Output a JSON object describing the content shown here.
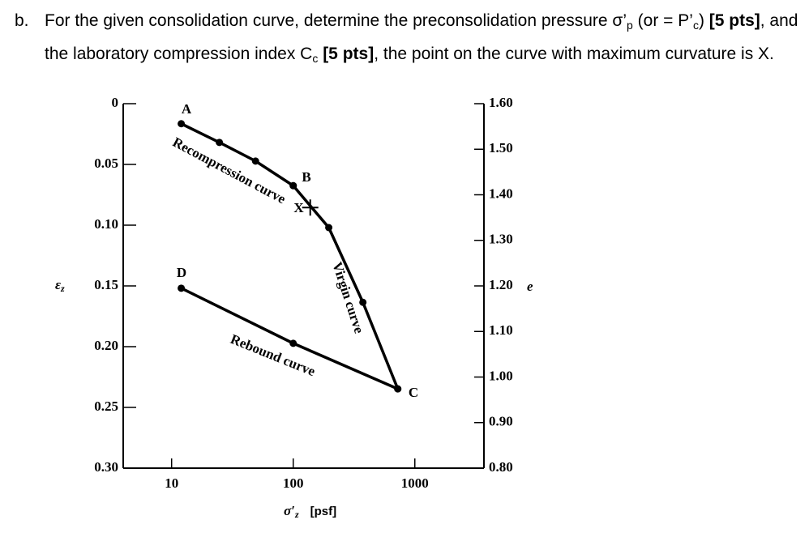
{
  "question": {
    "label": "b.",
    "segments": [
      {
        "text": "For the given consolidation curve, determine the preconsolidation pressure σ’",
        "style": "plain"
      },
      {
        "text": "p",
        "style": "sub"
      },
      {
        "text": " (or = P’",
        "style": "plain"
      },
      {
        "text": "c",
        "style": "sub"
      },
      {
        "text": ") ",
        "style": "plain"
      },
      {
        "text": "[5 pts]",
        "style": "bold"
      },
      {
        "text": ", and the laboratory compression index C",
        "style": "plain"
      },
      {
        "text": "c",
        "style": "sub"
      },
      {
        "text": " ",
        "style": "plain"
      },
      {
        "text": "[5 pts]",
        "style": "bold"
      },
      {
        "text": ", the point on the curve with maximum curvature is X.",
        "style": "plain"
      }
    ]
  },
  "chart_data": {
    "type": "line",
    "xlog": true,
    "xlabel": {
      "symbol": "σ′",
      "sub": "z",
      "unit": "[psf]"
    },
    "ylabel": {
      "symbol": "ε",
      "sub": "z"
    },
    "y2label": "e",
    "xlim": [
      4,
      3700
    ],
    "xticks": [
      10,
      100,
      1000
    ],
    "ylim": [
      0.3,
      0
    ],
    "yticks": [
      0,
      0.05,
      {
        "value": 0.1,
        "label": "0.10"
      },
      0.15,
      {
        "value": 0.2,
        "label": "0.20"
      },
      0.25,
      {
        "value": 0.3,
        "label": "0.30"
      }
    ],
    "y2lim": [
      0.8,
      1.6
    ],
    "y2ticks": [
      {
        "value": 1.6,
        "label": "1.60"
      },
      {
        "value": 1.5,
        "label": "1.50"
      },
      {
        "value": 1.4,
        "label": "1.40"
      },
      {
        "value": 1.3,
        "label": "1.30"
      },
      {
        "value": 1.2,
        "label": "1.20"
      },
      {
        "value": 1.1,
        "label": "1.10"
      },
      {
        "value": 1.0,
        "label": "1.00"
      },
      {
        "value": 0.9,
        "label": "0.90"
      },
      {
        "value": 0.8,
        "label": "0.80"
      }
    ],
    "series": [
      {
        "name": "Recompression curve",
        "color": "#000000",
        "axis": "y2",
        "x": [
          12,
          24.7,
          49,
          100
        ],
        "values": [
          1.556,
          1.515,
          1.474,
          1.42
        ]
      },
      {
        "name": "Virgin curve",
        "color": "#000000",
        "axis": "y2",
        "x": [
          100,
          196,
          374,
          724
        ],
        "values": [
          1.42,
          1.328,
          1.164,
          0.974
        ]
      },
      {
        "name": "Rebound curve",
        "color": "#000000",
        "axis": "y2",
        "x": [
          12,
          100,
          724
        ],
        "values": [
          1.195,
          1.074,
          0.974
        ]
      }
    ],
    "point_labels": [
      "A",
      "B",
      "C",
      "D"
    ],
    "annotations": [
      {
        "text": "X",
        "x": 138,
        "value": 1.372
      }
    ]
  }
}
